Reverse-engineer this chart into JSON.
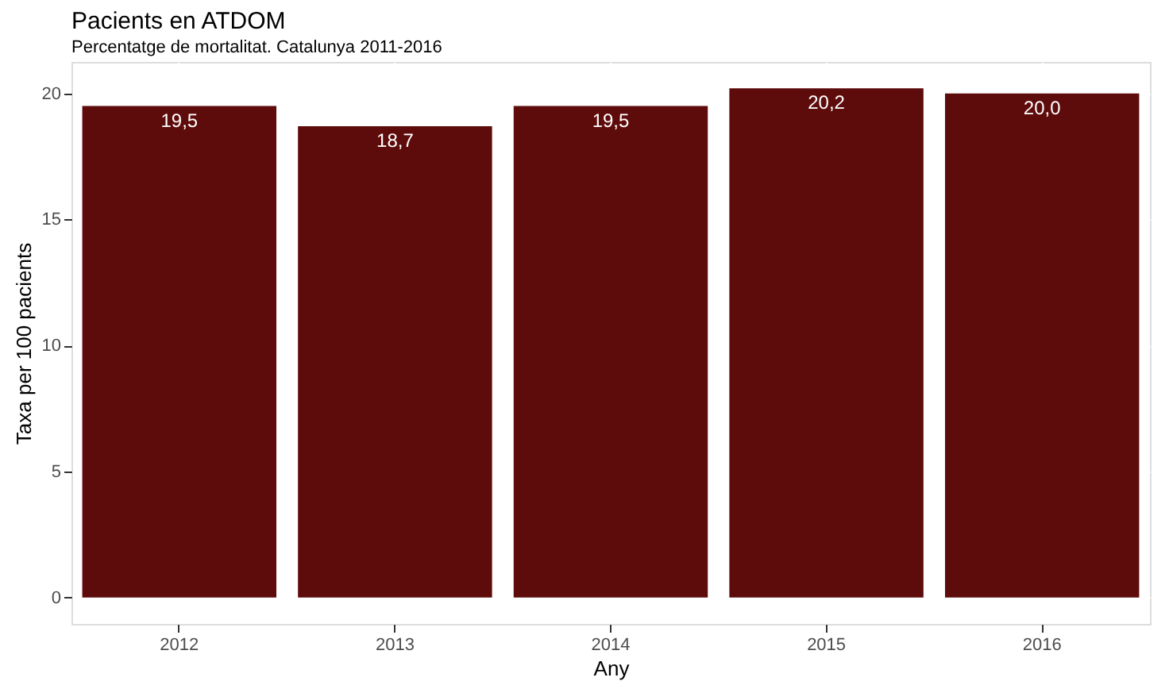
{
  "chart_data": {
    "type": "bar",
    "title": "Pacients en ATDOM",
    "subtitle": "Percentatge de mortalitat. Catalunya 2011-2016",
    "xlabel": "Any",
    "ylabel": "Taxa per 100 pacients",
    "categories": [
      "2012",
      "2013",
      "2014",
      "2015",
      "2016"
    ],
    "values": [
      19.5,
      18.7,
      19.5,
      20.2,
      20.0
    ],
    "value_labels": [
      "19,5",
      "18,7",
      "19,5",
      "20,2",
      "20,0"
    ],
    "color": "#5e0b0b",
    "ylim": [
      -1.05,
      21.25
    ],
    "yticks": [
      0,
      5,
      10,
      15,
      20
    ],
    "grid": true
  }
}
